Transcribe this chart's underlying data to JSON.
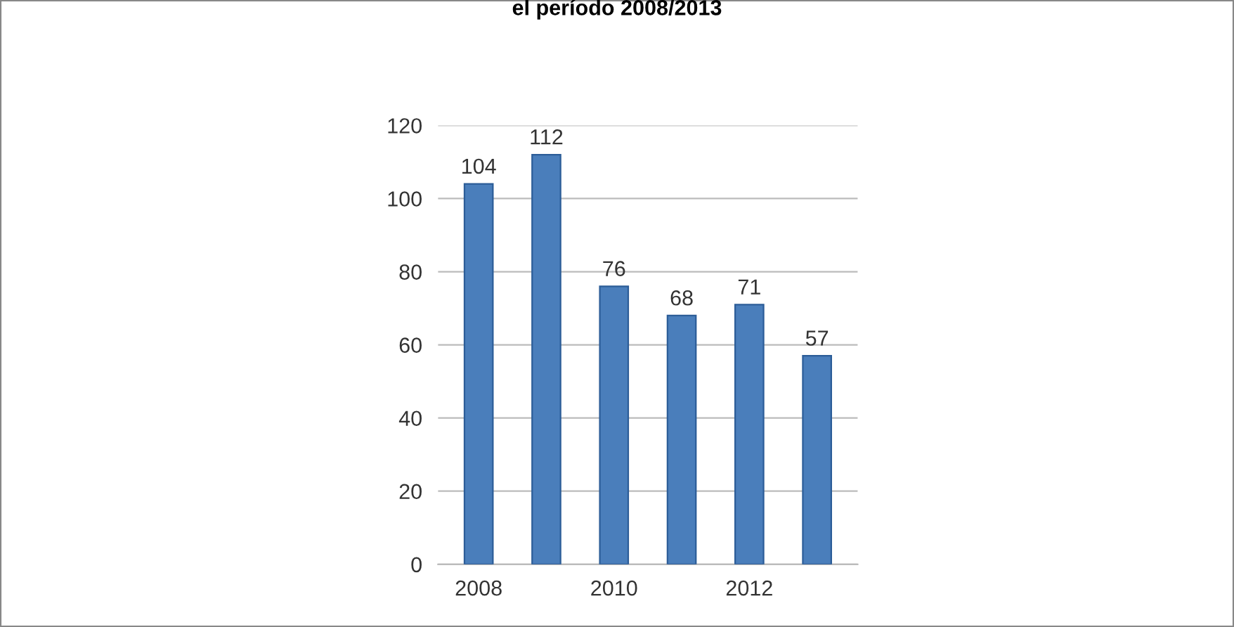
{
  "chart_data": {
    "type": "bar",
    "title": "el período 2008/2013",
    "categories": [
      "2008",
      null,
      "2010",
      null,
      "2012",
      null
    ],
    "values": [
      104,
      112,
      76,
      68,
      71,
      57
    ],
    "color": "#4a7ebb",
    "ylim": [
      0,
      120
    ],
    "yticks": [
      0,
      20,
      40,
      60,
      80,
      100,
      120
    ],
    "grid": "y",
    "data_labels": true
  }
}
